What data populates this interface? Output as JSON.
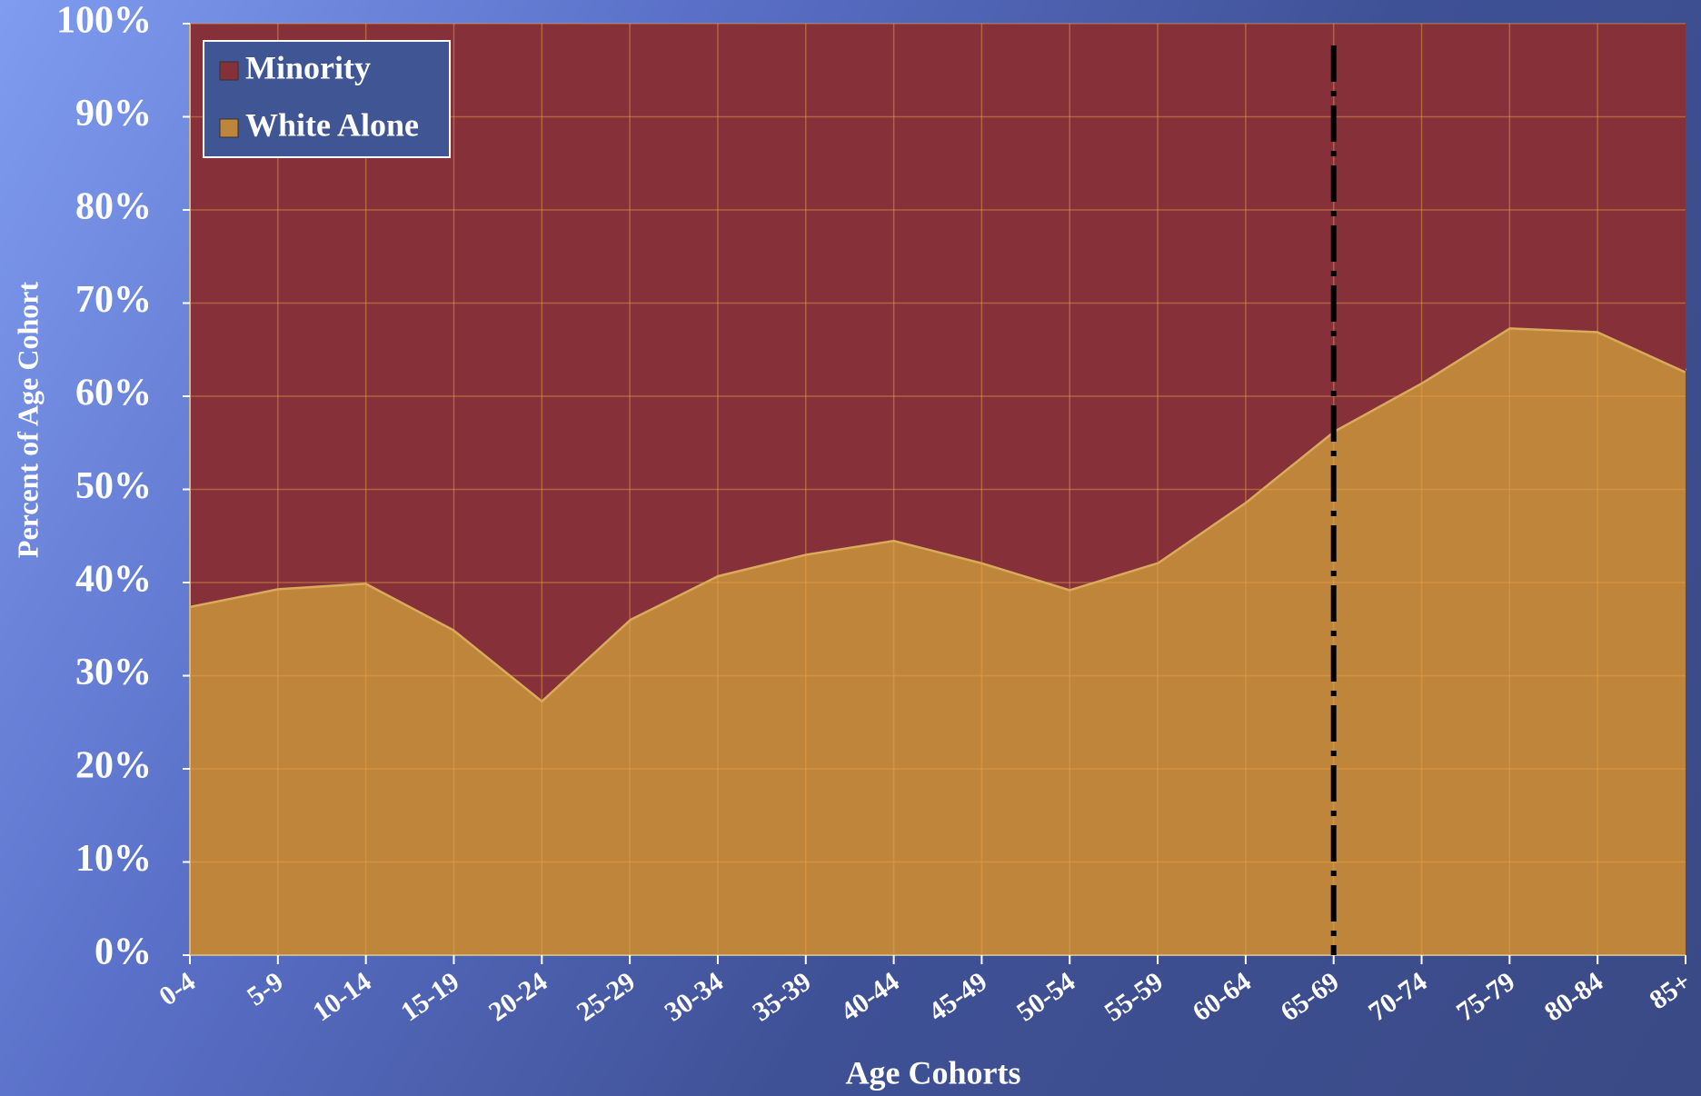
{
  "chart_data": {
    "type": "stacked_area",
    "x_label": "Age Cohorts",
    "y_label": "Percent of Age Cohort",
    "categories": [
      "0-4",
      "5-9",
      "10-14",
      "15-19",
      "20-24",
      "25-29",
      "30-34",
      "35-39",
      "40-44",
      "45-49",
      "50-54",
      "55-59",
      "60-64",
      "65-69",
      "70-74",
      "75-79",
      "80-84",
      "85+"
    ],
    "series": [
      {
        "name": "White Alone",
        "color": "#bf863b",
        "values": [
          37.5,
          39.4,
          40.0,
          35.0,
          27.4,
          36.1,
          40.8,
          43.1,
          44.6,
          42.2,
          39.3,
          42.2,
          48.7,
          56.3,
          61.5,
          67.4,
          67.0,
          62.7
        ]
      },
      {
        "name": "Minority",
        "color": "#86303a",
        "values": [
          62.5,
          60.6,
          60.0,
          65.0,
          72.6,
          63.9,
          59.2,
          56.9,
          55.4,
          57.8,
          60.7,
          57.8,
          51.3,
          43.7,
          38.5,
          32.6,
          33.0,
          37.3
        ]
      }
    ],
    "ylim": [
      0,
      100
    ],
    "yticks": [
      {
        "value": 0,
        "label": "0%"
      },
      {
        "value": 10,
        "label": "10%"
      },
      {
        "value": 20,
        "label": "20%"
      },
      {
        "value": 30,
        "label": "30%"
      },
      {
        "value": 40,
        "label": "40%"
      },
      {
        "value": 50,
        "label": "50%"
      },
      {
        "value": 60,
        "label": "60%"
      },
      {
        "value": 70,
        "label": "70%"
      },
      {
        "value": 80,
        "label": "80%"
      },
      {
        "value": 90,
        "label": "90%"
      },
      {
        "value": 100,
        "label": "100%"
      }
    ],
    "grid": true,
    "legend": "upper left"
  }
}
